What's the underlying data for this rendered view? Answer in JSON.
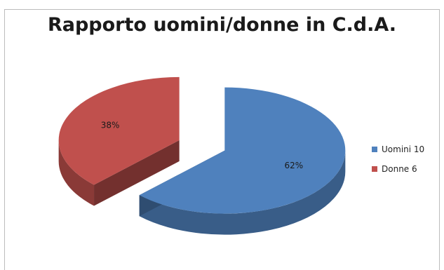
{
  "chart_data": {
    "type": "pie",
    "title": "Rapporto uomini/donne in C.d.A.",
    "categories": [
      "Uomini 10",
      "Donne 6"
    ],
    "values": [
      10,
      6
    ],
    "data_labels": [
      "62%",
      "38%"
    ],
    "colors": [
      "#4f81bd",
      "#c0504d"
    ],
    "legend_position": "right",
    "style": "3d-exploded"
  }
}
